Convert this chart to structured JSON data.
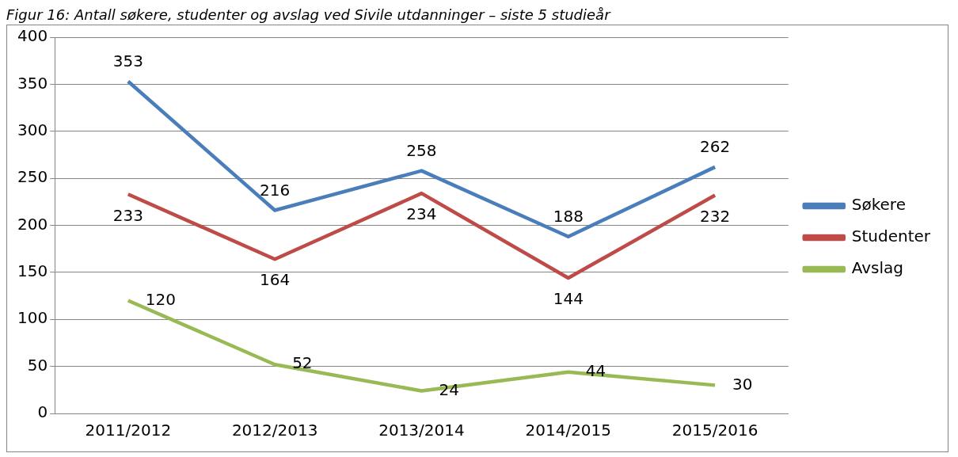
{
  "chart_data": {
    "type": "line",
    "title": "Figur 16: Antall søkere, studenter og avslag ved Sivile utdanninger – siste 5 studieår",
    "categories": [
      "2011/2012",
      "2012/2013",
      "2013/2014",
      "2014/2015",
      "2015/2016"
    ],
    "series": [
      {
        "name": "Søkere",
        "color": "#4a7ebb",
        "values": [
          353,
          216,
          258,
          188,
          262
        ]
      },
      {
        "name": "Studenter",
        "color": "#be4b48",
        "values": [
          233,
          164,
          234,
          144,
          232
        ]
      },
      {
        "name": "Avslag",
        "color": "#98b954",
        "values": [
          120,
          52,
          24,
          44,
          30
        ]
      }
    ],
    "ylim": [
      0,
      400
    ],
    "yticks": [
      0,
      50,
      100,
      150,
      200,
      250,
      300,
      350,
      400
    ],
    "grid": "y",
    "legend": "right",
    "marker": "none",
    "line_style": "solid",
    "data_labels": true
  }
}
